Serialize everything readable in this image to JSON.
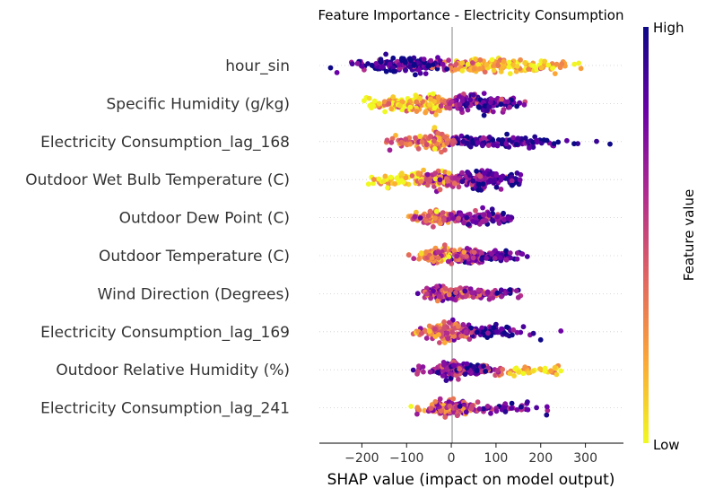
{
  "chart_data": {
    "type": "scatter",
    "subtype": "shap-beeswarm",
    "title": "Feature Importance - Electricity Consumption",
    "xlabel": "SHAP value (impact on model output)",
    "xlim": [
      -295,
      385
    ],
    "xticks": [
      -200,
      -100,
      0,
      100,
      200,
      300
    ],
    "tick_labels": [
      "−200",
      "−100",
      "0",
      "100",
      "200",
      "300"
    ],
    "colorbar": {
      "label": "Feature value",
      "high": "High",
      "low": "Low",
      "colormap": "plasma"
    },
    "colors": [
      "#0d0887",
      "#6a00a8",
      "#b12a90",
      "#e16462",
      "#fca636",
      "#f0f921"
    ],
    "features": [
      {
        "name": "hour_sin",
        "range": [
          -270,
          290
        ],
        "n": 340,
        "spread": 12,
        "peaks": [
          [
            -130,
            55,
            1.0,
            0.9
          ],
          [
            -50,
            30,
            0.8,
            0.92
          ],
          [
            70,
            55,
            1.0,
            0.2
          ],
          [
            180,
            50,
            0.45,
            0.12
          ]
        ],
        "rule": 0
      },
      {
        "name": "Specific Humidity  (g/kg)",
        "range": [
          -195,
          165
        ],
        "n": 300,
        "spread": 13,
        "peaks": [
          [
            -130,
            40,
            0.55,
            0.08
          ],
          [
            -50,
            40,
            0.95,
            0.15
          ],
          [
            50,
            35,
            1.0,
            0.85
          ],
          [
            110,
            30,
            0.5,
            0.8
          ]
        ],
        "rule": 0
      },
      {
        "name": "Electricity Consumption_lag_168",
        "range": [
          -145,
          355
        ],
        "n": 280,
        "spread": 12,
        "peaks": [
          [
            -30,
            20,
            1.0,
            0.2
          ],
          [
            -80,
            30,
            0.5,
            0.4
          ],
          [
            40,
            40,
            0.5,
            0.85
          ],
          [
            150,
            60,
            0.35,
            0.92
          ]
        ],
        "rule": 1
      },
      {
        "name": "Outdoor Wet Bulb Temperature (C)",
        "range": [
          -185,
          155
        ],
        "n": 300,
        "spread": 13,
        "peaks": [
          [
            -120,
            40,
            0.6,
            0.1
          ],
          [
            -25,
            25,
            0.9,
            0.45
          ],
          [
            60,
            35,
            1.0,
            0.85
          ],
          [
            120,
            20,
            0.4,
            0.85
          ]
        ],
        "rule": 0
      },
      {
        "name": "Outdoor Dew Point (C)",
        "range": [
          -95,
          135
        ],
        "n": 220,
        "spread": 10,
        "peaks": [
          [
            -40,
            25,
            1.0,
            0.35
          ],
          [
            45,
            30,
            0.8,
            0.75
          ],
          [
            100,
            25,
            0.5,
            0.85
          ]
        ],
        "rule": 0
      },
      {
        "name": "Outdoor Temperature (C)",
        "range": [
          -95,
          170
        ],
        "n": 220,
        "spread": 11,
        "peaks": [
          [
            -30,
            25,
            1.0,
            0.3
          ],
          [
            40,
            30,
            0.8,
            0.65
          ],
          [
            110,
            35,
            0.45,
            0.9
          ]
        ],
        "rule": 0
      },
      {
        "name": "Wind Direction (Degrees)",
        "range": [
          -75,
          155
        ],
        "n": 200,
        "spread": 10,
        "peaks": [
          [
            -20,
            20,
            1.0,
            0.6
          ],
          [
            40,
            25,
            0.7,
            0.6
          ],
          [
            110,
            30,
            0.3,
            0.75
          ]
        ],
        "rule": 1
      },
      {
        "name": "Electricity Consumption_lag_169",
        "range": [
          -85,
          245
        ],
        "n": 200,
        "spread": 12,
        "peaks": [
          [
            -30,
            20,
            0.9,
            0.3
          ],
          [
            10,
            20,
            1.0,
            0.5
          ],
          [
            80,
            40,
            0.45,
            0.88
          ]
        ],
        "rule": 1
      },
      {
        "name": "Outdoor Relative Humidity (%)",
        "range": [
          -85,
          245
        ],
        "n": 200,
        "spread": 11,
        "peaks": [
          [
            -10,
            25,
            1.0,
            0.7
          ],
          [
            60,
            30,
            0.5,
            0.8
          ],
          [
            150,
            50,
            0.2,
            0.1
          ]
        ],
        "rule": 1
      },
      {
        "name": "Electricity Consumption_lag_241",
        "range": [
          -90,
          215
        ],
        "n": 200,
        "spread": 11,
        "peaks": [
          [
            -20,
            20,
            1.0,
            0.45
          ],
          [
            20,
            20,
            0.8,
            0.55
          ],
          [
            100,
            40,
            0.3,
            0.8
          ]
        ],
        "rule": 1
      }
    ]
  }
}
